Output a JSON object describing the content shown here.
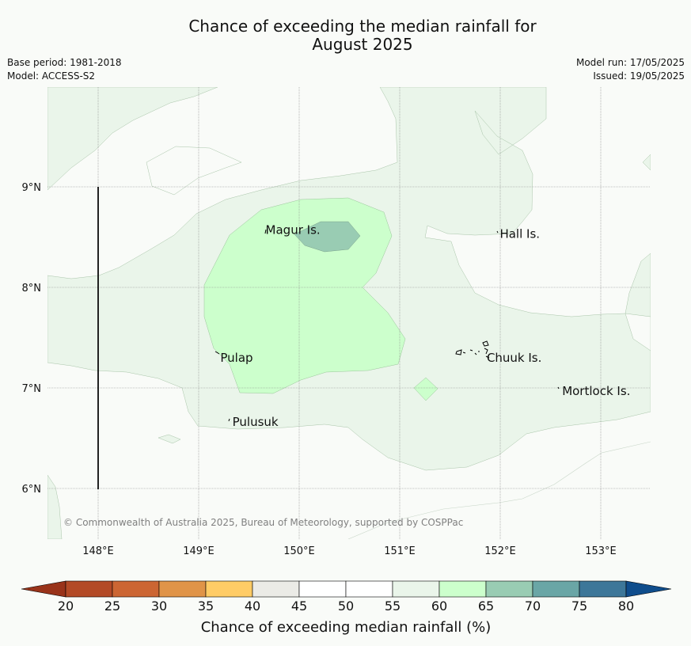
{
  "title_line1": "Chance of exceeding the median rainfall for",
  "title_line2": "August 2025",
  "base_period": "Base period: 1981-2018",
  "model": "Model: ACCESS-S2",
  "model_run": "Model run: 17/05/2025",
  "issued": "Issued: 19/05/2025",
  "copyright": "© Commonwealth of Australia 2025, Bureau of Meteorology, supported by COSPPac",
  "lon_ticks": [
    "148°E",
    "149°E",
    "150°E",
    "151°E",
    "152°E",
    "153°E"
  ],
  "lat_ticks": [
    "9°N",
    "8°N",
    "7°N",
    "6°N"
  ],
  "places": [
    {
      "name": "Magur Is.",
      "lon": 149.65,
      "lat": 8.57
    },
    {
      "name": "Hall Is.",
      "lon": 151.98,
      "lat": 8.53
    },
    {
      "name": "Pulap",
      "lon": 149.2,
      "lat": 7.3
    },
    {
      "name": "Chuuk Is.",
      "lon": 151.85,
      "lat": 7.3
    },
    {
      "name": "Mortlock Is.",
      "lon": 152.6,
      "lat": 6.97
    },
    {
      "name": "Pulusuk",
      "lon": 149.32,
      "lat": 6.66
    }
  ],
  "colorbar": {
    "title": "Chance of exceeding median rainfall (%)",
    "ticks": [
      "20",
      "25",
      "30",
      "35",
      "40",
      "45",
      "50",
      "55",
      "60",
      "65",
      "70",
      "75",
      "80"
    ],
    "colors": [
      "#b34a26",
      "#cc6633",
      "#e09448",
      "#ffcc66",
      "#ebebe6",
      "#ffffff",
      "#ffffff",
      "#eaf5ea",
      "#ccffcc",
      "#99ccb3",
      "#6aa6a6",
      "#3d7799"
    ],
    "under_color": "#99331a",
    "over_color": "#0f4d8c"
  }
}
